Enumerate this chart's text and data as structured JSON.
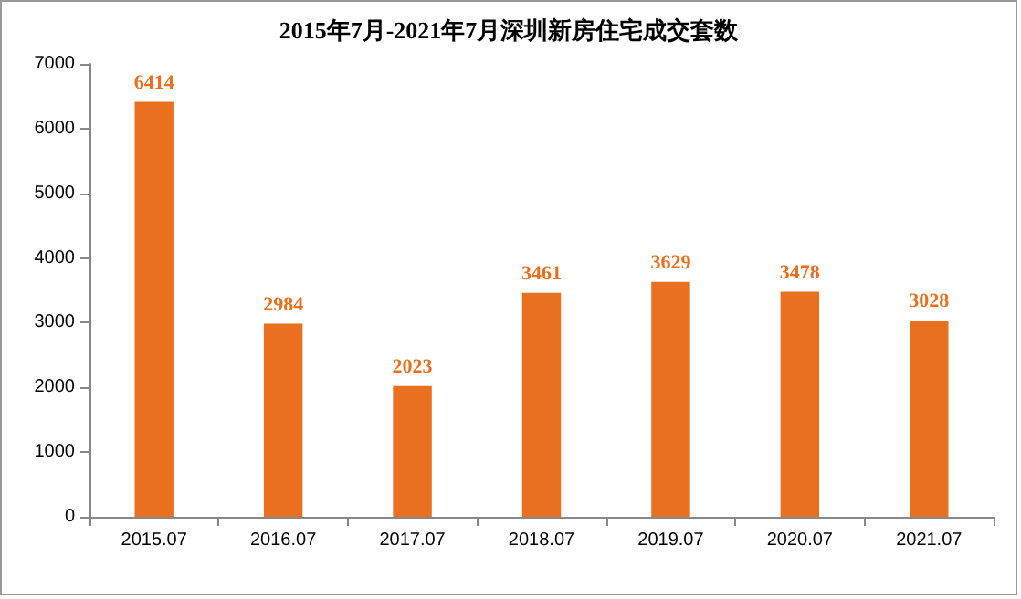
{
  "chart_data": {
    "type": "bar",
    "title": "2015年7月-2021年7月深圳新房住宅成交套数",
    "categories": [
      "2015.07",
      "2016.07",
      "2017.07",
      "2018.07",
      "2019.07",
      "2020.07",
      "2021.07"
    ],
    "values": [
      6414,
      2984,
      2023,
      3461,
      3629,
      3478,
      3028
    ],
    "color": "#e8701e",
    "ylim": [
      0,
      7000
    ],
    "yticks": [
      0,
      1000,
      2000,
      3000,
      4000,
      5000,
      6000,
      7000
    ],
    "grid": false,
    "data_labels": true
  }
}
